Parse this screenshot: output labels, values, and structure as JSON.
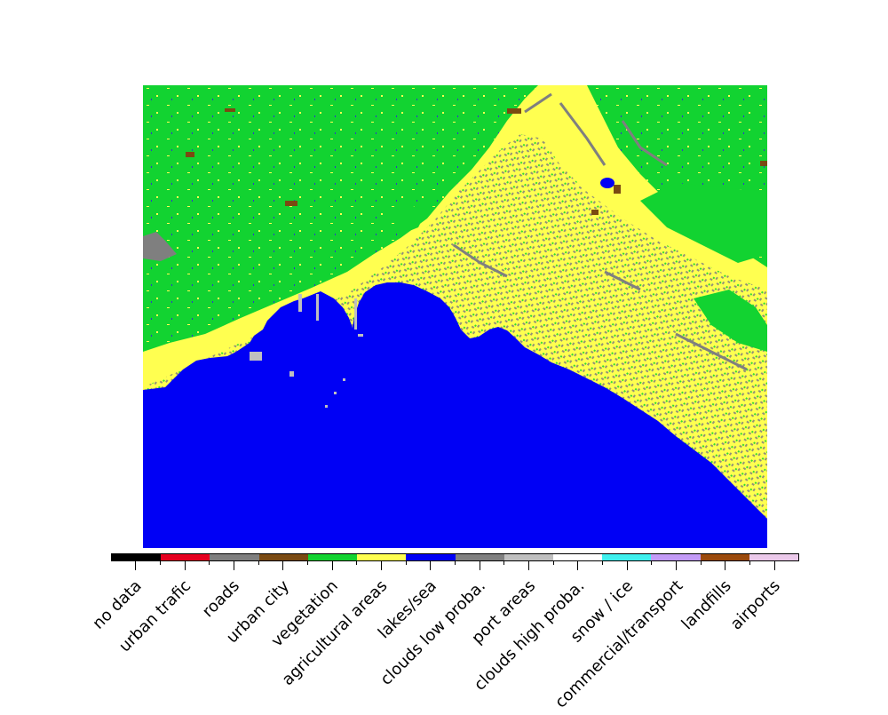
{
  "legend": {
    "classes": [
      {
        "label": "no data",
        "color": "#000000"
      },
      {
        "label": "urban trafic",
        "color": "#e6001f"
      },
      {
        "label": "roads",
        "color": "#7f7f7f"
      },
      {
        "label": "urban city",
        "color": "#7a4a12"
      },
      {
        "label": "vegetation",
        "color": "#12d331"
      },
      {
        "label": "agricultural areas",
        "color": "#ffff50"
      },
      {
        "label": "lakes/sea",
        "color": "#0000f5"
      },
      {
        "label": "clouds low proba.",
        "color": "#808080"
      },
      {
        "label": "port areas",
        "color": "#bfbfbf"
      },
      {
        "label": "clouds high proba.",
        "color": "#ffffff"
      },
      {
        "label": "snow / ice",
        "color": "#3ff0ee"
      },
      {
        "label": "commercial/transport",
        "color": "#c39bf7"
      },
      {
        "label": "landfills",
        "color": "#9b4a0c"
      },
      {
        "label": "airports",
        "color": "#ebc9ea"
      }
    ]
  },
  "map": {
    "icon": "land-cover-classification-map",
    "colors": {
      "sea": "#0000f5",
      "vegetation": "#12d331",
      "agricultural": "#ffff50",
      "roads": "#7f7f7f",
      "urban_city": "#7a4a12",
      "port": "#bfbfbf"
    }
  }
}
